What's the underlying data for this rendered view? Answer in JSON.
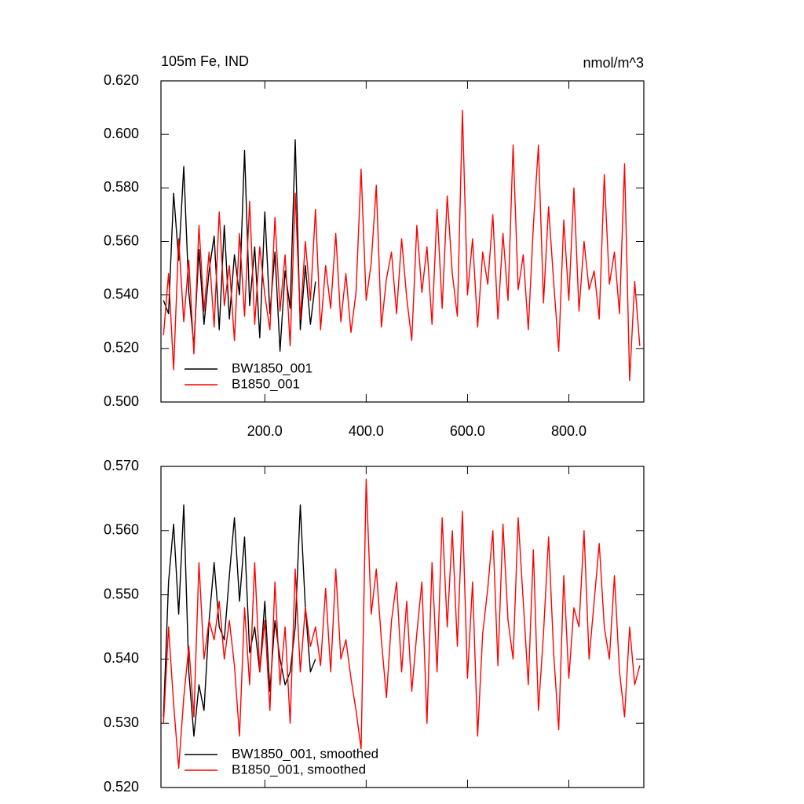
{
  "chart_data": [
    {
      "type": "line",
      "title": "105m Fe, IND",
      "units": "nmol/m^3",
      "xlim": [
        -5,
        948
      ],
      "ylim": [
        0.5,
        0.62
      ],
      "xticks": [
        {
          "value": 200,
          "label": "200.0"
        },
        {
          "value": 400,
          "label": "400.0"
        },
        {
          "value": 600,
          "label": "600.0"
        },
        {
          "value": 800,
          "label": "800.0"
        }
      ],
      "yticks": [
        {
          "value": 0.5,
          "label": "0.500"
        },
        {
          "value": 0.52,
          "label": "0.520"
        },
        {
          "value": 0.54,
          "label": "0.540"
        },
        {
          "value": 0.56,
          "label": "0.560"
        },
        {
          "value": 0.58,
          "label": "0.580"
        },
        {
          "value": 0.6,
          "label": "0.600"
        },
        {
          "value": 0.62,
          "label": "0.620"
        }
      ],
      "legend": "lower left",
      "x": [
        0,
        10,
        20,
        30,
        40,
        50,
        60,
        70,
        80,
        90,
        100,
        110,
        120,
        130,
        140,
        150,
        160,
        170,
        180,
        190,
        200,
        210,
        220,
        230,
        240,
        250,
        260,
        270,
        280,
        290,
        300,
        310,
        320,
        330,
        340,
        350,
        360,
        370,
        380,
        390,
        400,
        410,
        420,
        430,
        440,
        450,
        460,
        470,
        480,
        490,
        500,
        510,
        520,
        530,
        540,
        550,
        560,
        570,
        580,
        590,
        600,
        610,
        620,
        630,
        640,
        650,
        660,
        670,
        680,
        690,
        700,
        710,
        720,
        730,
        740,
        750,
        760,
        770,
        780,
        790,
        800,
        810,
        820,
        830,
        840,
        850,
        860,
        870,
        880,
        890,
        900,
        910,
        920,
        930,
        940
      ],
      "series": [
        {
          "name": "BW1850_001",
          "color": "#000000",
          "values": [
            0.538,
            0.533,
            0.578,
            0.553,
            0.588,
            0.541,
            0.521,
            0.557,
            0.529,
            0.549,
            0.562,
            0.527,
            0.566,
            0.531,
            0.555,
            0.54,
            0.594,
            0.536,
            0.558,
            0.524,
            0.571,
            0.533,
            0.556,
            0.519,
            0.549,
            0.535,
            0.598,
            0.527,
            0.551,
            0.529,
            0.545,
            null,
            null,
            null,
            null,
            null,
            null,
            null,
            null,
            null,
            null,
            null,
            null,
            null,
            null,
            null,
            null,
            null,
            null,
            null,
            null,
            null,
            null,
            null,
            null,
            null,
            null,
            null,
            null,
            null,
            null,
            null,
            null,
            null,
            null,
            null,
            null,
            null,
            null,
            null,
            null,
            null,
            null,
            null,
            null,
            null,
            null,
            null,
            null,
            null,
            null,
            null,
            null,
            null,
            null,
            null,
            null,
            null,
            null,
            null,
            null,
            null,
            null,
            null,
            null
          ]
        },
        {
          "name": "B1850_001",
          "color": "#ff0000",
          "values": [
            0.525,
            0.548,
            0.512,
            0.561,
            0.53,
            0.553,
            0.518,
            0.566,
            0.534,
            0.556,
            0.528,
            0.571,
            0.536,
            0.551,
            0.523,
            0.563,
            0.532,
            0.575,
            0.529,
            0.558,
            0.54,
            0.527,
            0.569,
            0.534,
            0.555,
            0.521,
            0.578,
            0.531,
            0.56,
            0.538,
            0.572,
            0.527,
            0.551,
            0.535,
            0.563,
            0.53,
            0.548,
            0.526,
            0.541,
            0.587,
            0.538,
            0.552,
            0.581,
            0.528,
            0.546,
            0.556,
            0.533,
            0.561,
            0.539,
            0.523,
            0.566,
            0.541,
            0.558,
            0.529,
            0.572,
            0.535,
            0.577,
            0.548,
            0.532,
            0.609,
            0.54,
            0.561,
            0.528,
            0.556,
            0.544,
            0.57,
            0.531,
            0.563,
            0.538,
            0.596,
            0.542,
            0.555,
            0.527,
            0.566,
            0.596,
            0.537,
            0.573,
            0.545,
            0.519,
            0.568,
            0.538,
            0.58,
            0.534,
            0.56,
            0.542,
            0.549,
            0.531,
            0.585,
            0.544,
            0.556,
            0.533,
            0.589,
            0.508,
            0.545,
            0.521
          ]
        }
      ]
    },
    {
      "type": "line",
      "xlim": [
        -5,
        948
      ],
      "ylim": [
        0.52,
        0.57
      ],
      "xticks": [
        200,
        400,
        600,
        800
      ],
      "yticks": [
        {
          "value": 0.52,
          "label": "0.520"
        },
        {
          "value": 0.53,
          "label": "0.530"
        },
        {
          "value": 0.54,
          "label": "0.540"
        },
        {
          "value": 0.55,
          "label": "0.550"
        },
        {
          "value": 0.56,
          "label": "0.560"
        },
        {
          "value": 0.57,
          "label": "0.570"
        }
      ],
      "legend": "lower left",
      "x": [
        0,
        10,
        20,
        30,
        40,
        50,
        60,
        70,
        80,
        90,
        100,
        110,
        120,
        130,
        140,
        150,
        160,
        170,
        180,
        190,
        200,
        210,
        220,
        230,
        240,
        250,
        260,
        270,
        280,
        290,
        300,
        310,
        320,
        330,
        340,
        350,
        360,
        370,
        380,
        390,
        400,
        410,
        420,
        430,
        440,
        450,
        460,
        470,
        480,
        490,
        500,
        510,
        520,
        530,
        540,
        550,
        560,
        570,
        580,
        590,
        600,
        610,
        620,
        630,
        640,
        650,
        660,
        670,
        680,
        690,
        700,
        710,
        720,
        730,
        740,
        750,
        760,
        770,
        780,
        790,
        800,
        810,
        820,
        830,
        840,
        850,
        860,
        870,
        880,
        890,
        900,
        910,
        920,
        930,
        940
      ],
      "series": [
        {
          "name": "BW1850_001, smoothed",
          "color": "#000000",
          "values": [
            0.531,
            0.552,
            0.561,
            0.547,
            0.564,
            0.538,
            0.528,
            0.536,
            0.532,
            0.546,
            0.555,
            0.545,
            0.543,
            0.553,
            0.562,
            0.549,
            0.559,
            0.541,
            0.545,
            0.538,
            0.549,
            0.535,
            0.546,
            0.54,
            0.536,
            0.538,
            0.545,
            0.564,
            0.548,
            0.538,
            0.54,
            null,
            null,
            null,
            null,
            null,
            null,
            null,
            null,
            null,
            null,
            null,
            null,
            null,
            null,
            null,
            null,
            null,
            null,
            null,
            null,
            null,
            null,
            null,
            null,
            null,
            null,
            null,
            null,
            null,
            null,
            null,
            null,
            null,
            null,
            null,
            null,
            null,
            null,
            null,
            null,
            null,
            null,
            null,
            null,
            null,
            null,
            null,
            null,
            null,
            null,
            null,
            null,
            null,
            null,
            null,
            null,
            null,
            null,
            null,
            null,
            null,
            null,
            null,
            null
          ]
        },
        {
          "name": "B1850_001, smoothed",
          "color": "#ff0000",
          "values": [
            0.53,
            0.545,
            0.533,
            0.523,
            0.534,
            0.542,
            0.531,
            0.555,
            0.54,
            0.546,
            0.543,
            0.549,
            0.54,
            0.546,
            0.539,
            0.528,
            0.548,
            0.536,
            0.555,
            0.538,
            0.546,
            0.532,
            0.552,
            0.536,
            0.545,
            0.53,
            0.554,
            0.538,
            0.548,
            0.542,
            0.545,
            0.539,
            0.551,
            0.538,
            0.554,
            0.54,
            0.543,
            0.537,
            0.532,
            0.526,
            0.568,
            0.547,
            0.554,
            0.543,
            0.534,
            0.546,
            0.552,
            0.538,
            0.549,
            0.535,
            0.544,
            0.552,
            0.53,
            0.555,
            0.538,
            0.562,
            0.545,
            0.56,
            0.542,
            0.563,
            0.537,
            0.552,
            0.528,
            0.544,
            0.551,
            0.56,
            0.539,
            0.561,
            0.546,
            0.54,
            0.562,
            0.549,
            0.536,
            0.557,
            0.532,
            0.544,
            0.559,
            0.541,
            0.529,
            0.553,
            0.537,
            0.548,
            0.545,
            0.56,
            0.54,
            0.549,
            0.558,
            0.545,
            0.54,
            0.553,
            0.538,
            0.531,
            0.545,
            0.536,
            0.539
          ]
        }
      ]
    }
  ]
}
